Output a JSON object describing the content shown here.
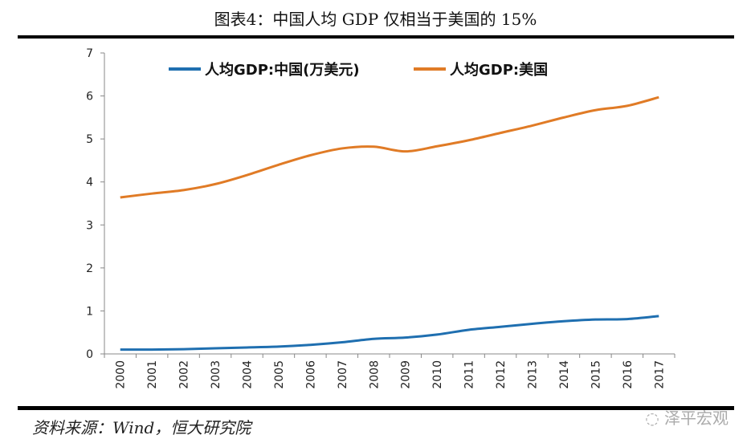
{
  "title": "图表4：中国人均 GDP 仅相当于美国的 15%",
  "source": "资料来源：Wind，恒大研究院",
  "watermark": "泽平宏观",
  "chart_data": {
    "type": "line",
    "title": "图表4：中国人均 GDP 仅相当于美国的 15%",
    "xlabel": "",
    "ylabel": "",
    "categories": [
      "2000",
      "2001",
      "2002",
      "2003",
      "2004",
      "2005",
      "2006",
      "2007",
      "2008",
      "2009",
      "2010",
      "2011",
      "2012",
      "2013",
      "2014",
      "2015",
      "2016",
      "2017"
    ],
    "ylim": [
      0,
      7
    ],
    "yticks": [
      "0",
      "1",
      "2",
      "3",
      "4",
      "5",
      "6",
      "7"
    ],
    "grid": false,
    "legend_placement": "top",
    "series": [
      {
        "name": "人均GDP:中国(万美元)",
        "color": "#1f6fb0",
        "values": [
          0.1,
          0.1,
          0.11,
          0.13,
          0.15,
          0.17,
          0.21,
          0.27,
          0.35,
          0.38,
          0.45,
          0.56,
          0.63,
          0.7,
          0.76,
          0.8,
          0.81,
          0.88
        ]
      },
      {
        "name": "人均GDP:美国",
        "color": "#e07b26",
        "values": [
          3.64,
          3.73,
          3.81,
          3.95,
          4.16,
          4.4,
          4.62,
          4.78,
          4.82,
          4.71,
          4.83,
          4.97,
          5.14,
          5.31,
          5.5,
          5.67,
          5.77,
          5.97
        ]
      }
    ]
  }
}
